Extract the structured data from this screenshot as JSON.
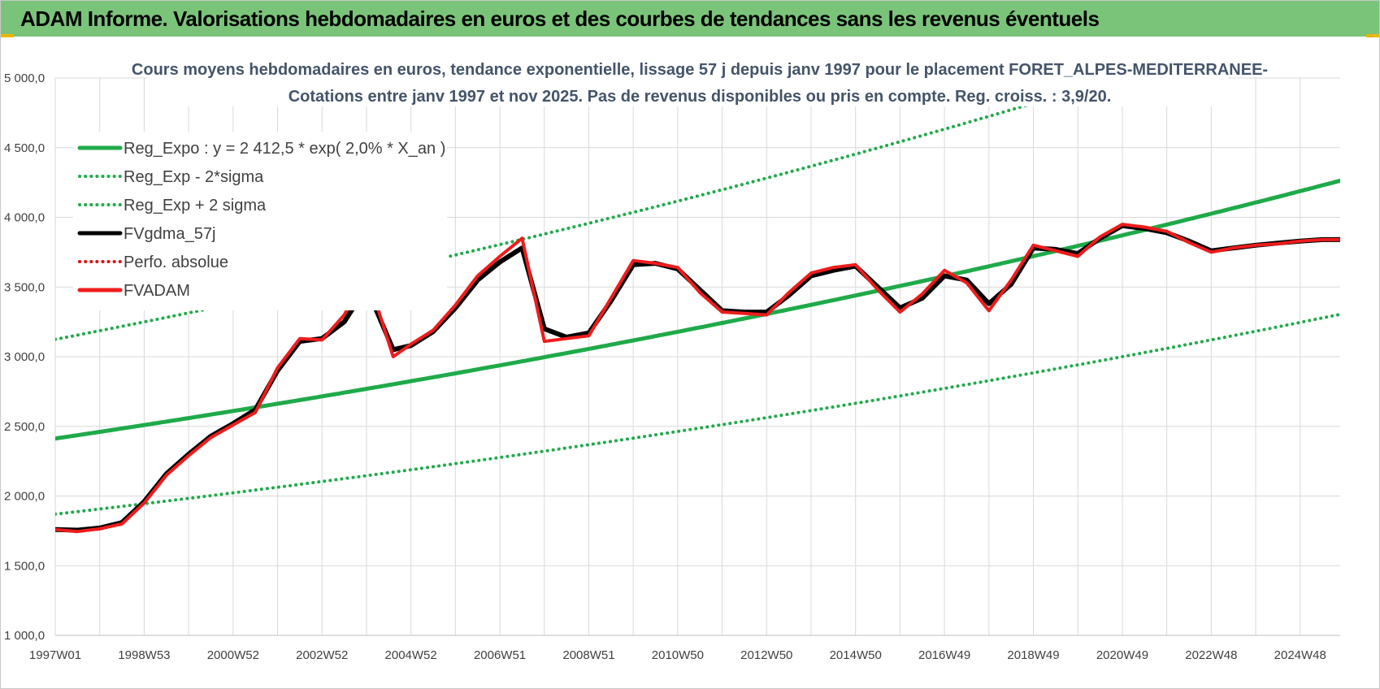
{
  "header": {
    "title": "ADAM Informe. Valorisations hebdomadaires en euros et des courbes de tendances sans les revenus éventuels"
  },
  "colors": {
    "header_bg": "#7ac47a",
    "reg_expo": "#1faa4a",
    "sigma": "#1faa4a",
    "fvgdma": "#000000",
    "perfo": "#e01010",
    "fvadam": "#ee1c1c",
    "grid": "#d9d9d9",
    "title": "#44546a"
  },
  "chart_data": {
    "type": "line",
    "title_lines": [
      "Cours moyens hebdomadaires en euros, tendance exponentielle, lissage 57 j depuis janv 1997 pour le placement FORET_ALPES-MEDITERRANEE-",
      "Cotations entre janv 1997 et nov 2025. Pas de revenus disponibles ou pris en compte. Reg. croiss. : 3,9/20."
    ],
    "x_range": [
      1997.0,
      2025.9
    ],
    "x_ticks": [
      {
        "x": 1997.0,
        "label": "1997W01"
      },
      {
        "x": 1999.0,
        "label": "1998W53"
      },
      {
        "x": 2001.0,
        "label": "2000W52"
      },
      {
        "x": 2003.0,
        "label": "2002W52"
      },
      {
        "x": 2005.0,
        "label": "2004W52"
      },
      {
        "x": 2007.0,
        "label": "2006W51"
      },
      {
        "x": 2009.0,
        "label": "2008W51"
      },
      {
        "x": 2011.0,
        "label": "2010W50"
      },
      {
        "x": 2013.0,
        "label": "2012W50"
      },
      {
        "x": 2015.0,
        "label": "2014W50"
      },
      {
        "x": 2017.0,
        "label": "2016W49"
      },
      {
        "x": 2019.0,
        "label": "2018W49"
      },
      {
        "x": 2021.0,
        "label": "2020W49"
      },
      {
        "x": 2023.0,
        "label": "2022W48"
      },
      {
        "x": 2025.0,
        "label": "2024W48"
      }
    ],
    "ylim": [
      1000,
      5000
    ],
    "y_ticks": [
      {
        "y": 1000,
        "label": "1 000,0"
      },
      {
        "y": 1500,
        "label": "1 500,0"
      },
      {
        "y": 2000,
        "label": "2 000,0"
      },
      {
        "y": 2500,
        "label": "2 500,0"
      },
      {
        "y": 3000,
        "label": "3 000,0"
      },
      {
        "y": 3500,
        "label": "3 500,0"
      },
      {
        "y": 4000,
        "label": "4 000,0"
      },
      {
        "y": 4500,
        "label": "4 500,0"
      },
      {
        "y": 5000,
        "label": "5 000,0"
      }
    ],
    "grid": true,
    "legend_position": "top-left",
    "series": [
      {
        "name": "Reg_Expo : y = 2 412,5 * exp( 2,0% *  X_an )",
        "style": "solid",
        "color_key": "reg_expo",
        "formula": {
          "a": 2412.5,
          "rate": 0.0197,
          "factor": 1.0
        }
      },
      {
        "name": "Reg_Exp - 2*sigma",
        "style": "dotted",
        "color_key": "sigma",
        "formula": {
          "a": 2412.5,
          "rate": 0.0197,
          "factor": 0.775
        }
      },
      {
        "name": "Reg_Exp + 2 sigma",
        "style": "dotted",
        "color_key": "sigma",
        "formula": {
          "a": 2412.5,
          "rate": 0.0197,
          "factor": 1.295
        }
      },
      {
        "name": "FVgdma_57j",
        "style": "solid",
        "color_key": "fvgdma",
        "x": [
          1997.0,
          1997.5,
          1998.0,
          1998.5,
          1999.0,
          1999.5,
          2000.0,
          2000.5,
          2001.0,
          2001.5,
          2002.0,
          2002.5,
          2003.0,
          2003.5,
          2004.0,
          2004.6,
          2005.0,
          2005.5,
          2006.0,
          2006.5,
          2007.0,
          2007.5,
          2008.0,
          2008.5,
          2009.0,
          2009.5,
          2010.0,
          2010.5,
          2011.0,
          2011.5,
          2012.0,
          2012.5,
          2013.0,
          2013.5,
          2014.0,
          2014.5,
          2015.0,
          2015.5,
          2016.0,
          2016.5,
          2017.0,
          2017.5,
          2018.0,
          2018.5,
          2019.0,
          2019.5,
          2020.0,
          2020.5,
          2021.0,
          2021.5,
          2022.0,
          2022.5,
          2023.0,
          2023.5,
          2024.0,
          2024.5,
          2025.0,
          2025.5,
          2025.9
        ],
        "y": [
          1760,
          1755,
          1770,
          1810,
          1960,
          2160,
          2300,
          2430,
          2520,
          2620,
          2900,
          3110,
          3130,
          3250,
          3500,
          3050,
          3080,
          3180,
          3350,
          3550,
          3680,
          3780,
          3200,
          3140,
          3170,
          3400,
          3660,
          3670,
          3630,
          3480,
          3330,
          3320,
          3320,
          3440,
          3580,
          3620,
          3650,
          3500,
          3350,
          3420,
          3580,
          3550,
          3380,
          3520,
          3780,
          3770,
          3740,
          3850,
          3940,
          3920,
          3890,
          3830,
          3760,
          3780,
          3800,
          3815,
          3830,
          3840,
          3840
        ]
      },
      {
        "name": "Perfo. absolue",
        "style": "dotted",
        "color_key": "perfo",
        "x": [],
        "y": []
      },
      {
        "name": "FVADAM",
        "style": "solid",
        "color_key": "fvadam",
        "x": [
          1997.0,
          1997.5,
          1998.0,
          1998.5,
          1999.0,
          1999.5,
          2000.0,
          2000.5,
          2001.0,
          2001.5,
          2002.0,
          2002.5,
          2003.0,
          2003.5,
          2004.0,
          2004.6,
          2005.0,
          2005.5,
          2006.0,
          2006.5,
          2007.0,
          2007.5,
          2008.0,
          2008.5,
          2009.0,
          2009.5,
          2010.0,
          2010.5,
          2011.0,
          2011.5,
          2012.0,
          2012.5,
          2013.0,
          2013.5,
          2014.0,
          2014.5,
          2015.0,
          2015.5,
          2016.0,
          2016.5,
          2017.0,
          2017.5,
          2018.0,
          2018.5,
          2019.0,
          2019.5,
          2020.0,
          2020.5,
          2021.0,
          2021.5,
          2022.0,
          2022.5,
          2023.0,
          2023.5,
          2024.0,
          2024.5,
          2025.0,
          2025.5,
          2025.9
        ],
        "y": [
          1760,
          1745,
          1765,
          1800,
          1950,
          2150,
          2290,
          2420,
          2510,
          2600,
          2920,
          3130,
          3120,
          3300,
          3600,
          3000,
          3090,
          3190,
          3370,
          3580,
          3720,
          3850,
          3110,
          3130,
          3150,
          3420,
          3690,
          3670,
          3640,
          3460,
          3320,
          3310,
          3300,
          3460,
          3600,
          3640,
          3660,
          3480,
          3320,
          3450,
          3620,
          3530,
          3330,
          3550,
          3800,
          3760,
          3720,
          3860,
          3950,
          3930,
          3900,
          3820,
          3750,
          3780,
          3800,
          3810,
          3830,
          3840,
          3840
        ]
      }
    ]
  }
}
